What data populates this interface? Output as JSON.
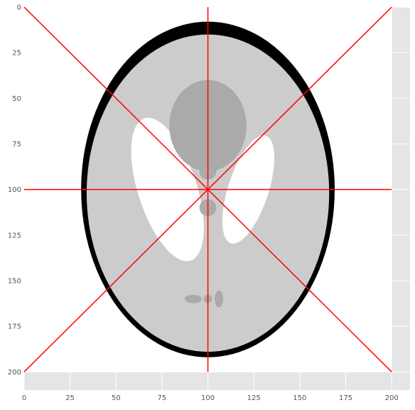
{
  "chart_data": {
    "type": "image",
    "title": "",
    "xlabel": "",
    "ylabel": "",
    "xlim": [
      0,
      210
    ],
    "ylim": [
      210,
      0
    ],
    "image_extent": [
      0,
      200,
      200,
      0
    ],
    "y_inverted": true,
    "grid": true,
    "legend": "none",
    "x_ticks": [
      0,
      25,
      50,
      75,
      100,
      125,
      150,
      175,
      200
    ],
    "y_ticks": [
      0,
      25,
      50,
      75,
      100,
      125,
      150,
      175,
      200
    ],
    "x_tick_labels": [
      "0",
      "25",
      "50",
      "75",
      "100",
      "125",
      "150",
      "175",
      "200"
    ],
    "y_tick_labels": [
      "0",
      "25",
      "50",
      "75",
      "100",
      "125",
      "150",
      "175",
      "200"
    ],
    "image": {
      "content": "Shepp-Logan phantom",
      "ellipses": [
        {
          "cx": 100,
          "cy": 100,
          "rx": 69,
          "ry": 92,
          "angle": 0,
          "fill": "#000000"
        },
        {
          "cx": 100,
          "cy": 102,
          "rx": 66,
          "ry": 87,
          "angle": 0,
          "fill": "#cccccc"
        },
        {
          "cx": 122,
          "cy": 100,
          "rx": 11,
          "ry": 31,
          "angle": 18,
          "fill": "#ffffff"
        },
        {
          "cx": 78,
          "cy": 100,
          "rx": 16,
          "ry": 41,
          "angle": -18,
          "fill": "#ffffff"
        },
        {
          "cx": 100,
          "cy": 65,
          "rx": 21,
          "ry": 25,
          "angle": 0,
          "fill": "#aaaaaa"
        },
        {
          "cx": 100,
          "cy": 90,
          "rx": 4.6,
          "ry": 4.6,
          "angle": 0,
          "fill": "#aaaaaa"
        },
        {
          "cx": 100,
          "cy": 110,
          "rx": 4.6,
          "ry": 4.6,
          "angle": 0,
          "fill": "#aaaaaa"
        },
        {
          "cx": 92,
          "cy": 160,
          "rx": 4.6,
          "ry": 2.3,
          "angle": 0,
          "fill": "#aaaaaa"
        },
        {
          "cx": 100,
          "cy": 160,
          "rx": 2.3,
          "ry": 2.3,
          "angle": 0,
          "fill": "#aaaaaa"
        },
        {
          "cx": 106,
          "cy": 160,
          "rx": 2.3,
          "ry": 4.6,
          "angle": 0,
          "fill": "#aaaaaa"
        }
      ]
    },
    "lines": [
      {
        "x": [
          0,
          200
        ],
        "y": [
          0,
          200
        ],
        "color": "#ff0000"
      },
      {
        "x": [
          0,
          200
        ],
        "y": [
          200,
          0
        ],
        "color": "#ff0000"
      },
      {
        "x": [
          0,
          200
        ],
        "y": [
          100,
          100
        ],
        "color": "#ff0000"
      },
      {
        "x": [
          100,
          100
        ],
        "y": [
          0,
          200
        ],
        "color": "#ff0000"
      }
    ]
  },
  "colors": {
    "axes_background": "#e5e5e5",
    "grid": "#ffffff",
    "tick_label": "#555555",
    "line": "#ff0000"
  }
}
